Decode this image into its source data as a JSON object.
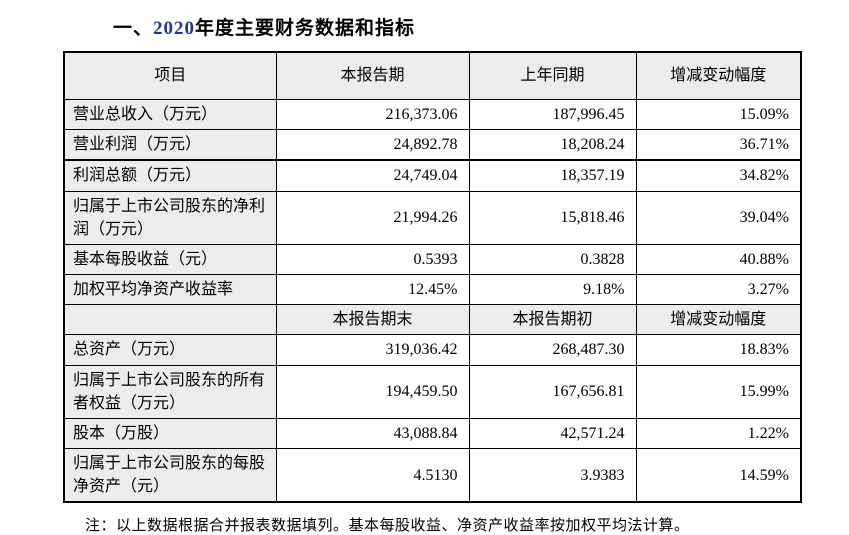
{
  "title": {
    "prefix": "一、",
    "year": "2020",
    "rest": "年度主要财务数据和指标"
  },
  "colors": {
    "title_year_blue": "#1f3695",
    "header_cell_bg": "#ececec",
    "table_border": "#000000"
  },
  "chart_data": {
    "type": "table",
    "title": "2020年度主要财务数据和指标",
    "header1": [
      "项目",
      "本报告期",
      "上年同期",
      "增减变动幅度"
    ],
    "header2": [
      "",
      "本报告期末",
      "本报告期初",
      "增减变动幅度"
    ],
    "section1_rows": [
      {
        "label": "营业总收入（万元）",
        "current": "216,373.06",
        "prior": "187,996.45",
        "change": "15.09%"
      },
      {
        "label": "营业利润（万元）",
        "current": "24,892.78",
        "prior": "18,208.24",
        "change": "36.71%"
      },
      {
        "label": "利润总额（万元）",
        "current": "24,749.04",
        "prior": "18,357.19",
        "change": "34.82%"
      },
      {
        "label": "归属于上市公司股东的净利润（万元）",
        "current": "21,994.26",
        "prior": "15,818.46",
        "change": "39.04%"
      },
      {
        "label": "基本每股收益（元）",
        "current": "0.5393",
        "prior": "0.3828",
        "change": "40.88%"
      },
      {
        "label": "加权平均净资产收益率",
        "current": "12.45%",
        "prior": "9.18%",
        "change": "3.27%"
      }
    ],
    "section2_rows": [
      {
        "label": "总资产（万元）",
        "current": "319,036.42",
        "prior": "268,487.30",
        "change": "18.83%"
      },
      {
        "label": "归属于上市公司股东的所有者权益（万元）",
        "current": "194,459.50",
        "prior": "167,656.81",
        "change": "15.99%"
      },
      {
        "label": "股本（万股）",
        "current": "43,088.84",
        "prior": "42,571.24",
        "change": "1.22%"
      },
      {
        "label": "归属于上市公司股东的每股净资产（元）",
        "current": "4.5130",
        "prior": "3.9383",
        "change": "14.59%"
      }
    ]
  },
  "note": "注：以上数据根据合并报表数据填列。基本每股收益、净资产收益率按加权平均法计算。"
}
